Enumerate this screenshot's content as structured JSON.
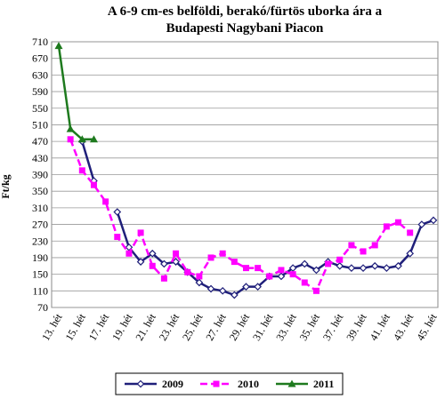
{
  "chart_data": {
    "type": "line",
    "title": [
      "A 6-9 cm-es  belföldi,  berakó/fürtös uborka ára a",
      "Budapesti Nagybani Piacon"
    ],
    "y_label": "Ft/kg",
    "categories": [
      "13. hét",
      null,
      "15. hét",
      null,
      "17. hét",
      null,
      "19. hét",
      null,
      "21. hét",
      null,
      "23. hét",
      null,
      "25. hét",
      null,
      "27. hét",
      null,
      "29. hét",
      null,
      "31. hét",
      null,
      "33. hét",
      null,
      "35. hét",
      null,
      "37. hét",
      null,
      "39. hét",
      null,
      "41. hét",
      null,
      "43. hét",
      null,
      "45. hét"
    ],
    "ylim": [
      70,
      710
    ],
    "yticks": [
      70,
      110,
      150,
      190,
      230,
      270,
      310,
      350,
      390,
      430,
      470,
      510,
      550,
      590,
      630,
      670,
      710
    ],
    "grid": true,
    "legend": "bottom",
    "series": [
      {
        "name": "2009",
        "color": "#1f1f7a",
        "marker": "diamond",
        "line_style": "solid",
        "values": [
          null,
          null,
          470,
          375,
          null,
          300,
          215,
          180,
          200,
          175,
          180,
          155,
          130,
          115,
          110,
          100,
          120,
          120,
          145,
          145,
          165,
          175,
          160,
          180,
          170,
          165,
          165,
          170,
          165,
          170,
          200,
          270,
          280
        ]
      },
      {
        "name": "2010",
        "color": "#ff00ff",
        "marker": "square",
        "line_style": "dashed",
        "values": [
          null,
          475,
          400,
          365,
          325,
          240,
          200,
          250,
          170,
          140,
          200,
          155,
          145,
          190,
          200,
          180,
          165,
          165,
          145,
          160,
          150,
          130,
          110,
          175,
          185,
          220,
          205,
          220,
          265,
          275,
          250,
          null,
          null
        ]
      },
      {
        "name": "2011",
        "color": "#1e7a1e",
        "marker": "triangle",
        "line_style": "solid",
        "values": [
          700,
          500,
          475,
          475,
          null,
          null,
          null,
          null,
          null,
          null,
          null,
          null,
          null,
          null,
          null,
          null,
          null,
          null,
          null,
          null,
          null,
          null,
          null,
          null,
          null,
          null,
          null,
          null,
          null,
          null,
          null,
          null,
          null
        ]
      }
    ]
  }
}
